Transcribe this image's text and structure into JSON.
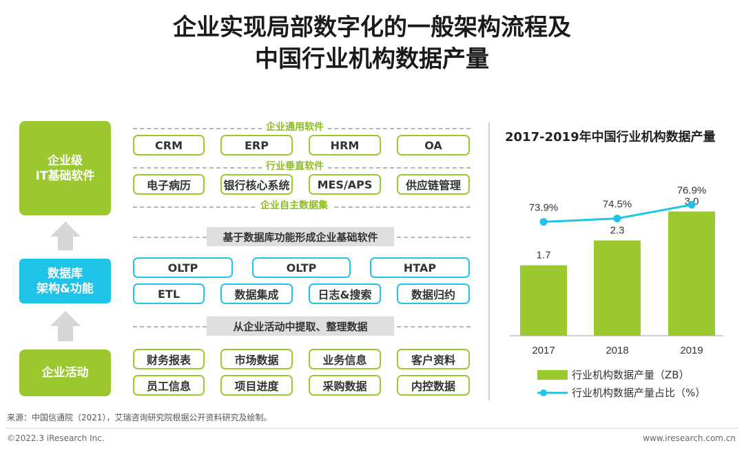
{
  "title_line1": "企业实现局部数字化的一般架构流程及",
  "title_line2": "中国行业机构数据产量",
  "left": {
    "it_block": [
      "企业级",
      "IT基础软件"
    ],
    "db_block": [
      "数据库",
      "架构&功能"
    ],
    "act_block": "企业活动",
    "sec_general": "企业通用软件",
    "general_items": [
      "CRM",
      "ERP",
      "HRM",
      "OA"
    ],
    "sec_vertical": "行业垂直软件",
    "vertical_items": [
      "电子病历",
      "银行核心系统",
      "MES/APS",
      "供应链管理"
    ],
    "sec_own": "企业自主数据集",
    "band_db": "基于数据库功能形成企业基础软件",
    "db_row1": [
      "OLTP",
      "OLTP",
      "HTAP"
    ],
    "db_row2": [
      "ETL",
      "数据集成",
      "日志&搜索",
      "数据归约"
    ],
    "band_act": "从企业活动中提取、整理数据",
    "act_row1": [
      "财务报表",
      "市场数据",
      "业务信息",
      "客户资料"
    ],
    "act_row2": [
      "员工信息",
      "项目进度",
      "采购数据",
      "内控数据"
    ]
  },
  "chart_data": {
    "type": "bar",
    "title": "2017-2019年中国行业机构数据产量",
    "categories": [
      "2017",
      "2018",
      "2019"
    ],
    "series": [
      {
        "name": "行业机构数据产量（ZB）",
        "type": "bar",
        "values": [
          1.7,
          2.3,
          3.0
        ],
        "labels": [
          "1.7",
          "2.3",
          "3.0"
        ],
        "color": "#9bc82f"
      },
      {
        "name": "行业机构数据产量占比（%）",
        "type": "line",
        "values": [
          73.9,
          74.5,
          76.9
        ],
        "labels": [
          "73.9%",
          "74.5%",
          "76.9%"
        ],
        "color": "#1ec3e8"
      }
    ],
    "legend": "bottom",
    "grid": false
  },
  "source": "来源：中国信通院（2021），艾瑞咨询研究院根据公开资料研究及绘制。",
  "footer_left": "©2022.3 iResearch Inc.",
  "footer_right": "www.iresearch.com.cn",
  "colors": {
    "green": "#9bc82f",
    "blue": "#1ec3e8"
  }
}
